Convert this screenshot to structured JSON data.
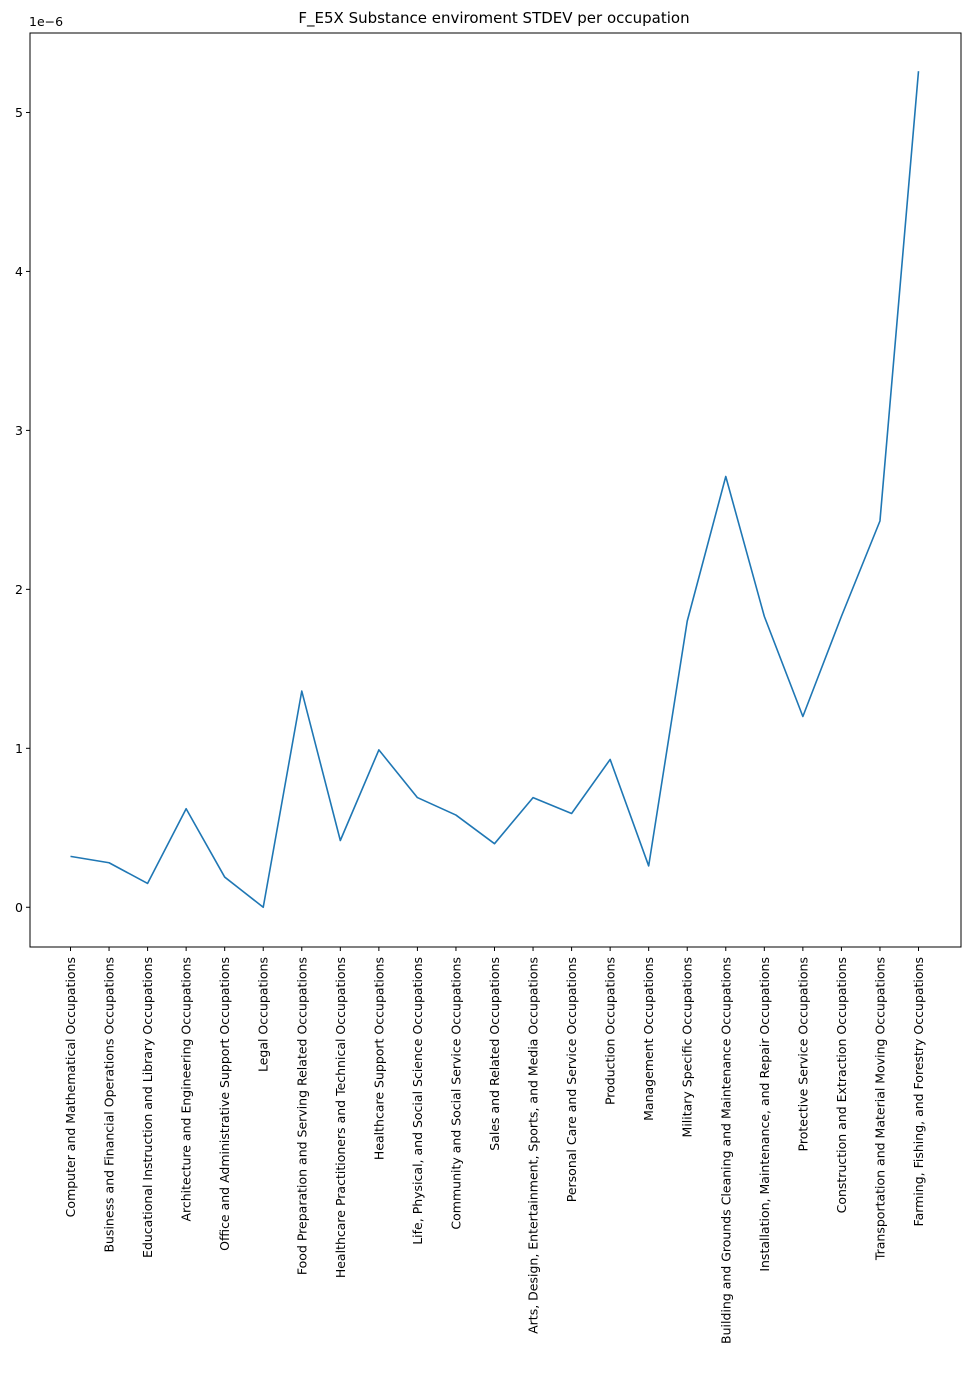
{
  "chart_data": {
    "type": "line",
    "title": "F_E5X Substance enviroment STDEV per occupation",
    "xlabel": "",
    "ylabel": "",
    "y_scale_label": "1e−6",
    "ylim": [
      -0.25,
      5.5
    ],
    "y_ticks": [
      0,
      1,
      2,
      3,
      4,
      5
    ],
    "y_tick_labels": [
      "0",
      "1",
      "2",
      "3",
      "4",
      "5"
    ],
    "grid": false,
    "line_color": "#1f77b4",
    "categories": [
      "Computer and Mathematical Occupations",
      "Business and Financial Operations Occupations",
      "Educational Instruction and Library Occupations",
      "Architecture and Engineering Occupations",
      "Office and Administrative Support Occupations",
      "Legal Occupations",
      "Food Preparation and Serving Related Occupations",
      "Healthcare Practitioners and Technical Occupations",
      "Healthcare Support Occupations",
      "Life, Physical, and Social Science Occupations",
      "Community and Social Service Occupations",
      "Sales and Related Occupations",
      "Arts, Design, Entertainment, Sports, and Media Occupations",
      "Personal Care and Service Occupations",
      "Production Occupations",
      "Management Occupations",
      "Military Specific Occupations",
      "Building and Grounds Cleaning and Maintenance Occupations",
      "Installation, Maintenance, and Repair Occupations",
      "Protective Service Occupations",
      "Construction and Extraction Occupations",
      "Transportation and Material Moving Occupations",
      "Farming, Fishing, and Forestry Occupations"
    ],
    "series": [
      {
        "values": [
          0.32,
          0.28,
          0.15,
          0.62,
          0.19,
          0.0,
          1.36,
          0.42,
          0.99,
          0.69,
          0.58,
          0.4,
          0.69,
          0.59,
          0.93,
          0.26,
          1.8,
          2.71,
          1.83,
          1.2,
          1.83,
          2.43,
          5.26
        ]
      }
    ]
  }
}
